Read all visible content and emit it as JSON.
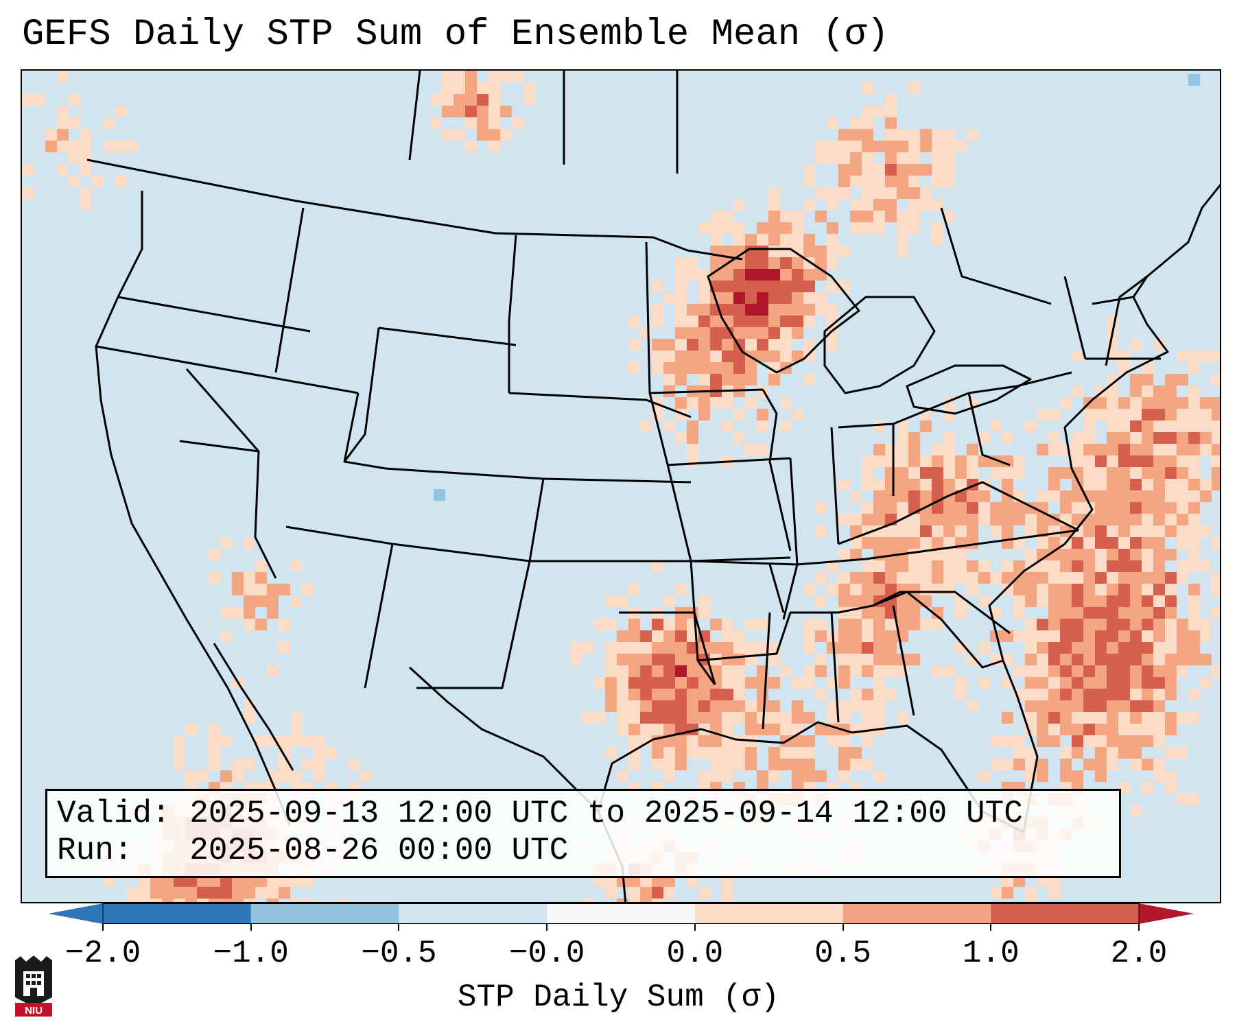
{
  "title": "GEFS Daily STP Sum of Ensemble Mean (σ)",
  "info": {
    "valid_line": "Valid: 2025-09-13 12:00 UTC to 2025-09-14 12:00 UTC",
    "run_line": "Run:   2025-08-26 00:00 UTC"
  },
  "colorbar": {
    "label": "STP Daily Sum (σ)",
    "ticks": [
      "−2.0",
      "−1.0",
      "−0.5",
      "−0.0",
      "0.0",
      "0.5",
      "1.0",
      "2.0"
    ],
    "colors": [
      "#2f77b6",
      "#92c2de",
      "#d1e5f0",
      "#f7f7f7",
      "#fcdbc7",
      "#f2a385",
      "#d6604d",
      "#b2182b"
    ]
  },
  "map_colors": {
    "ocean": "#d0e4ef",
    "land": "#d1e5f0",
    "light": "#fcdbc7",
    "medium": "#f4a582",
    "strong": "#d6604d",
    "extreme": "#b2182b",
    "negative": "#92c5de",
    "borders": "#000000"
  },
  "logo_text": "NIU"
}
